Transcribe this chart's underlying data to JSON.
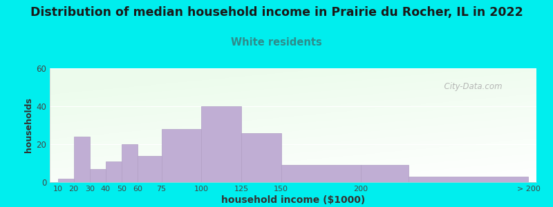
{
  "title": "Distribution of median household income in Prairie du Rocher, IL in 2022",
  "subtitle": "White residents",
  "xlabel": "household income ($1000)",
  "ylabel": "households",
  "background_outer": "#00EEEE",
  "bar_color": "#c0aed4",
  "bar_edge_color": "#b09ec4",
  "title_fontsize": 12.5,
  "subtitle_fontsize": 10.5,
  "subtitle_color": "#2e8b8b",
  "xlabel_fontsize": 10,
  "ylabel_fontsize": 9,
  "ylim": [
    0,
    60
  ],
  "yticks": [
    0,
    20,
    40,
    60
  ],
  "bins": [
    10,
    20,
    30,
    40,
    50,
    60,
    75,
    100,
    125,
    150,
    200,
    230,
    305
  ],
  "values": [
    2,
    24,
    7,
    11,
    20,
    14,
    28,
    40,
    26,
    9,
    9,
    3
  ],
  "xtick_labels": [
    "10",
    "20",
    "30",
    "40",
    "50",
    "60",
    "75",
    "100",
    "125",
    "150",
    "200",
    "",
    "> 200"
  ],
  "xtick_positions": [
    10,
    20,
    30,
    40,
    50,
    60,
    75,
    100,
    125,
    150,
    200,
    230,
    305
  ],
  "watermark": "  City-Data.com",
  "xlim_left": 5,
  "xlim_right": 310
}
